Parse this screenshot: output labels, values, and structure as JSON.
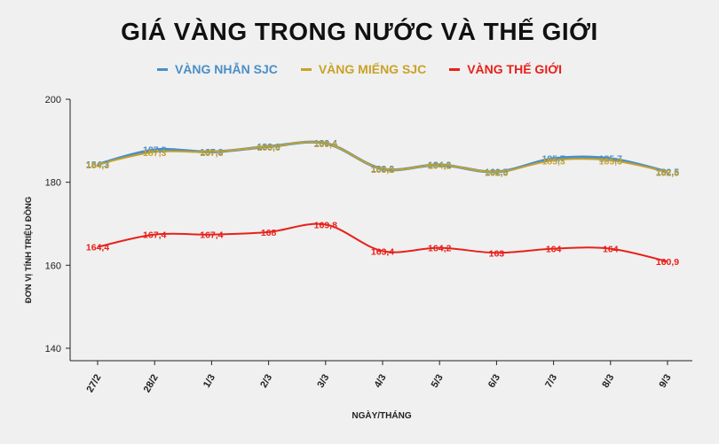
{
  "chart_data": {
    "type": "line",
    "title": "GIÁ VÀNG TRONG NƯỚC VÀ THẾ GIỚI",
    "xlabel": "NGÀY/THÁNG",
    "ylabel": "ĐƠN VỊ TÍNH TRIỆU ĐỒNG",
    "categories": [
      "27/2",
      "28/2",
      "1/3",
      "2/3",
      "3/3",
      "4/3",
      "5/3",
      "6/3",
      "7/3",
      "8/3",
      "9/3"
    ],
    "yticks": [
      "140",
      "160",
      "180",
      "200"
    ],
    "ylim": [
      137,
      200
    ],
    "grid": false,
    "legend_position": "top-center",
    "series": [
      {
        "name": "VÀNG NHẪN SJC",
        "color": "#4a8fc7",
        "values": [
          184.3,
          187.8,
          187.3,
          188.6,
          189.4,
          183.2,
          184.2,
          182.5,
          185.7,
          185.7,
          182.5
        ],
        "labels": [
          "184,3",
          "187,8",
          "187,3",
          "188,6",
          "189,4",
          "183,2",
          "184,2",
          "182,5",
          "185,7",
          "185,7",
          "182,5"
        ]
      },
      {
        "name": "VÀNG MIẾNG SJC",
        "color": "#c9a227",
        "values": [
          184.3,
          187.3,
          187.3,
          188.6,
          189.4,
          183.2,
          184.2,
          182.5,
          185.3,
          185.3,
          182.5
        ],
        "labels": [
          "184,3",
          "187,3",
          "187,3",
          "188,6",
          "189,4",
          "183,2",
          "184,2",
          "182,5",
          "185,3",
          "185,3",
          "182,5"
        ]
      },
      {
        "name": "VÀNG THẾ GIỚI",
        "color": "#e8201a",
        "values": [
          164.4,
          167.4,
          167.4,
          168,
          169.8,
          163.4,
          164.2,
          163,
          164,
          164,
          160.9
        ],
        "labels": [
          "164,4",
          "167,4",
          "167,4",
          "168",
          "169,8",
          "163,4",
          "164,2",
          "163",
          "164",
          "164",
          "160,9"
        ]
      }
    ]
  }
}
